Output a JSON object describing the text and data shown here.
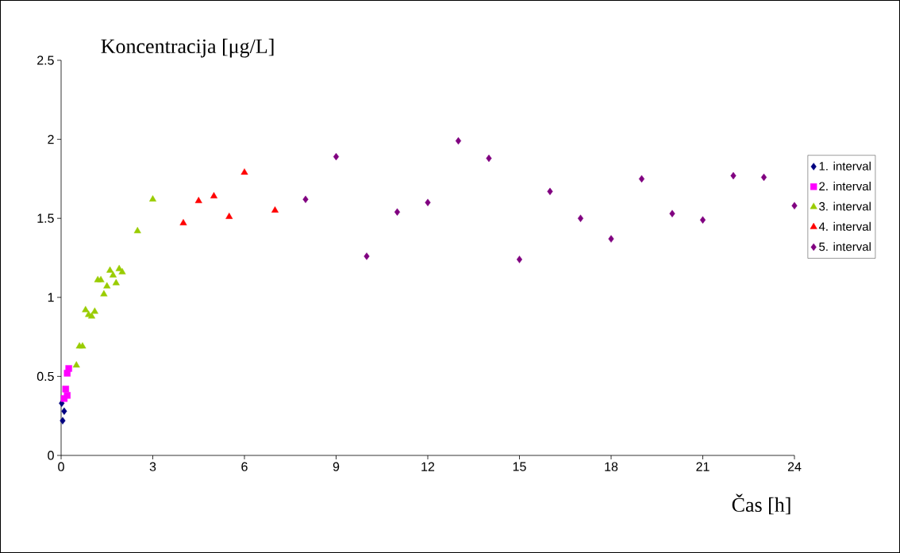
{
  "chart_data": {
    "type": "scatter",
    "xlabel": "Čas [h]",
    "ylabel": "Koncentracija [μg/L]",
    "xlim": [
      0,
      24
    ],
    "xticks": [
      0,
      3,
      6,
      9,
      12,
      15,
      18,
      21,
      24
    ],
    "ylim": [
      0,
      2.5
    ],
    "yticks": [
      0,
      0.5,
      1,
      1.5,
      2,
      2.5
    ],
    "grid": false,
    "legend": "right",
    "series": [
      {
        "name": "1. interval",
        "color": "#000080",
        "marker": "diamond",
        "x": [
          0.05,
          0.1,
          0.02
        ],
        "values": [
          0.22,
          0.28,
          0.33
        ]
      },
      {
        "name": "2. interval",
        "color": "#ff00ff",
        "marker": "square",
        "x": [
          0.2,
          0.25,
          0.1,
          0.15,
          0.2
        ],
        "values": [
          0.52,
          0.55,
          0.36,
          0.42,
          0.38
        ]
      },
      {
        "name": "3. interval",
        "color": "#99cc00",
        "marker": "triangle",
        "x": [
          0.5,
          0.6,
          0.7,
          0.8,
          0.9,
          1.0,
          1.1,
          1.2,
          1.3,
          1.4,
          1.5,
          1.6,
          1.7,
          1.8,
          1.9,
          2.0,
          2.5,
          3
        ],
        "values": [
          0.57,
          0.69,
          0.69,
          0.92,
          0.89,
          0.88,
          0.91,
          1.11,
          1.11,
          1.02,
          1.07,
          1.17,
          1.14,
          1.09,
          1.18,
          1.16,
          1.42,
          1.62
        ]
      },
      {
        "name": "4. interval",
        "color": "#ff0000",
        "marker": "triangle",
        "x": [
          4,
          4.5,
          5,
          5.5,
          6,
          7
        ],
        "values": [
          1.47,
          1.61,
          1.64,
          1.51,
          1.79,
          1.55
        ]
      },
      {
        "name": "5. interval",
        "color": "#800080",
        "marker": "diamond",
        "x": [
          8,
          9,
          10,
          11,
          12,
          13,
          14,
          15,
          16,
          17,
          18,
          19,
          20,
          21,
          22,
          23,
          24
        ],
        "values": [
          1.62,
          1.89,
          1.26,
          1.54,
          1.6,
          1.99,
          1.88,
          1.24,
          1.67,
          1.5,
          1.37,
          1.75,
          1.53,
          1.49,
          1.77,
          1.76,
          1.58
        ]
      }
    ]
  }
}
